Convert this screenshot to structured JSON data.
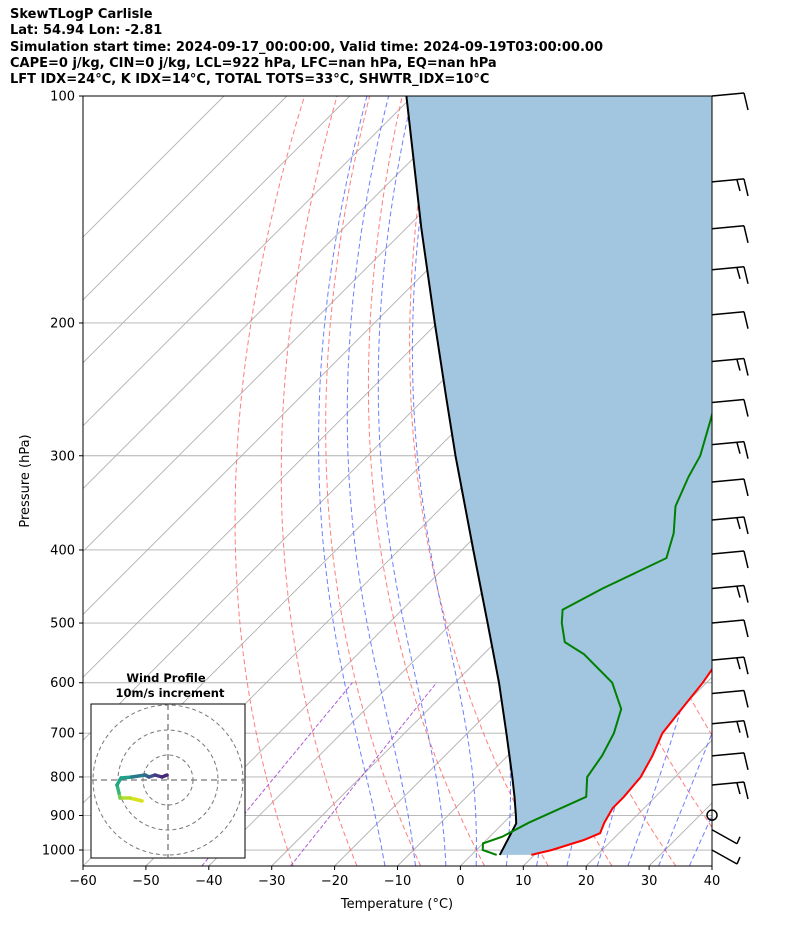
{
  "header": {
    "line1": "SkewTLogP Carlisle",
    "line2": "Lat: 54.94   Lon: -2.81",
    "line3": "Simulation start time: 2024-09-17_00:00:00, Valid time: 2024-09-19T03:00:00.00",
    "line4": "CAPE=0 j/kg, CIN=0 j/kg, LCL=922 hPa, LFC=nan hPa, EQ=nan hPa",
    "line5": "LFT IDX=24°C, K IDX=14°C, TOTAL TOTS=33°C, SHWTR_IDX=10°C"
  },
  "chart_data": {
    "type": "line",
    "title": "SkewTLogP Carlisle",
    "xlabel": "Temperature (°C)",
    "ylabel": "Pressure (hPa)",
    "xlim": [
      -60,
      40
    ],
    "ylim": [
      1050,
      100
    ],
    "y_scale": "log",
    "skew_note": "isotherms skewed 45 degrees",
    "x_ticks": [
      -60,
      -50,
      -40,
      -30,
      -20,
      -10,
      0,
      10,
      20,
      30,
      40
    ],
    "y_ticks": [
      1000,
      900,
      800,
      700,
      600,
      500,
      400,
      300,
      200,
      100
    ],
    "grid": true,
    "colors": {
      "temperature": "#ff0000",
      "dewpoint": "#008000",
      "parcel": "#000000",
      "shading": "#a3c6e0",
      "dry_adiabats": "#ff6666",
      "moist_adiabats": "#5566ff",
      "mixing_ratio": "#9933cc",
      "isotherms": "#b0b0b0"
    },
    "series": [
      {
        "key": "temperature",
        "points": [
          [
            1015,
            9.5
          ],
          [
            1000,
            12
          ],
          [
            970,
            15.5
          ],
          [
            950,
            17
          ],
          [
            920,
            16
          ],
          [
            880,
            15
          ],
          [
            850,
            15
          ],
          [
            800,
            14.5
          ],
          [
            750,
            13
          ],
          [
            700,
            11
          ],
          [
            650,
            10.2
          ],
          [
            600,
            9.4
          ],
          [
            550,
            8
          ],
          [
            500,
            5.3
          ],
          [
            450,
            0.8
          ],
          [
            400,
            -4.2
          ],
          [
            350,
            -10
          ],
          [
            300,
            -17.3
          ],
          [
            270,
            -22.8
          ],
          [
            250,
            -27.2
          ],
          [
            220,
            -33.6
          ],
          [
            200,
            -38
          ],
          [
            180,
            -43
          ],
          [
            165,
            -46
          ],
          [
            150,
            -47
          ],
          [
            135,
            -49
          ],
          [
            125,
            -51.5
          ],
          [
            115,
            -52.7
          ],
          [
            105,
            -52
          ],
          [
            100,
            -51.5
          ]
        ]
      },
      {
        "key": "dewpoint",
        "points": [
          [
            1015,
            4
          ],
          [
            1000,
            1
          ],
          [
            980,
            0
          ],
          [
            960,
            2
          ],
          [
            920,
            4
          ],
          [
            850,
            9
          ],
          [
            800,
            6
          ],
          [
            750,
            5
          ],
          [
            700,
            3.3
          ],
          [
            650,
            0.6
          ],
          [
            600,
            -5
          ],
          [
            550,
            -14
          ],
          [
            530,
            -19
          ],
          [
            500,
            -22.5
          ],
          [
            480,
            -24.5
          ],
          [
            450,
            -21.5
          ],
          [
            410,
            -16.2
          ],
          [
            380,
            -19
          ],
          [
            350,
            -23
          ],
          [
            320,
            -25.6
          ],
          [
            300,
            -27.1
          ],
          [
            270,
            -31
          ],
          [
            250,
            -33.9
          ],
          [
            240,
            -36
          ],
          [
            220,
            -39.2
          ],
          [
            200,
            -43
          ],
          [
            180,
            -47.6
          ],
          [
            160,
            -52.9
          ],
          [
            145,
            -56.6
          ],
          [
            135,
            -59
          ],
          [
            125,
            -60.2
          ],
          [
            115,
            -60
          ],
          [
            100,
            -57
          ]
        ]
      },
      {
        "key": "parcel",
        "points": [
          [
            1015,
            4.5
          ],
          [
            922,
            2.1
          ],
          [
            900,
            0.8
          ],
          [
            850,
            -2.4
          ],
          [
            800,
            -5.9
          ],
          [
            700,
            -13.8
          ],
          [
            600,
            -23
          ],
          [
            500,
            -34.3
          ],
          [
            400,
            -48.2
          ],
          [
            300,
            -66
          ],
          [
            250,
            -77
          ],
          [
            200,
            -90.4
          ],
          [
            150,
            -107.5
          ],
          [
            100,
            -131
          ]
        ]
      }
    ],
    "wind_barbs": {
      "description": "winds plotted on right side",
      "pressures": [
        100,
        130,
        150,
        170,
        195,
        225,
        255,
        290,
        325,
        365,
        405,
        450,
        500,
        560,
        620,
        680,
        750,
        820,
        880,
        940,
        1000
      ]
    },
    "inset": {
      "title_line1": "Wind Profile",
      "title_line2": "10m/s increment",
      "type": "hodograph"
    }
  }
}
